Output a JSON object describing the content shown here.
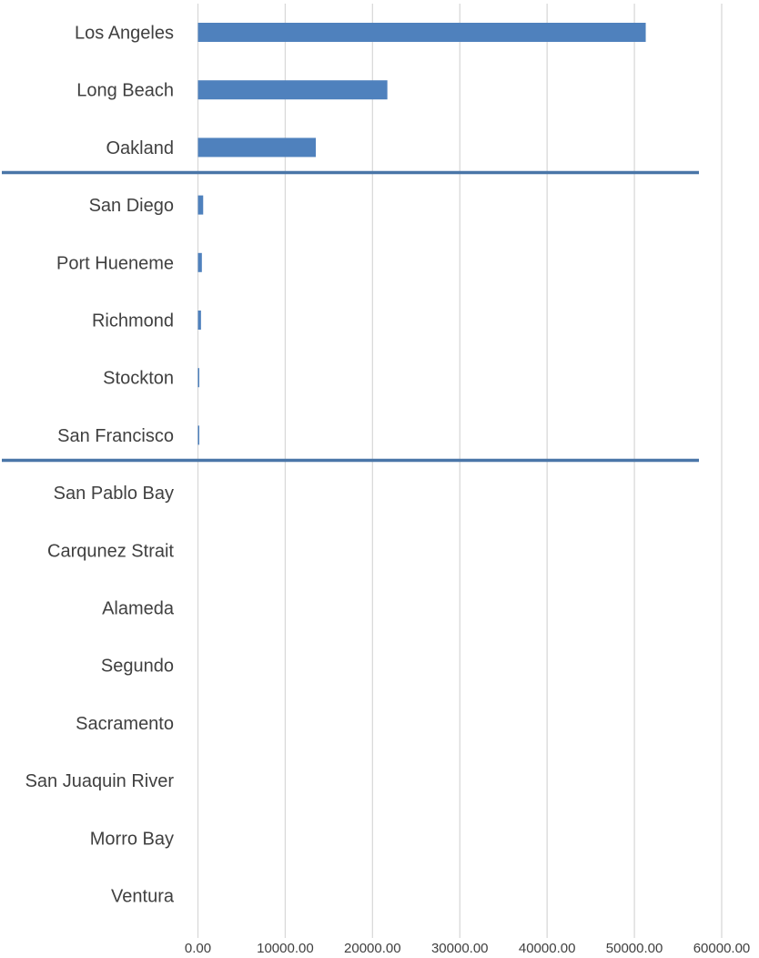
{
  "chart_data": {
    "type": "bar",
    "orientation": "horizontal",
    "title": "",
    "xlabel": "",
    "ylabel": "",
    "categories": [
      "Los Angeles",
      "Long Beach",
      "Oakland",
      "San Diego",
      "Port Hueneme",
      "Richmond",
      "Stockton",
      "San Francisco",
      "San Pablo Bay",
      "Carqunez Strait",
      "Alameda",
      "Segundo",
      "Sacramento",
      "San Juaquin River",
      "Morro Bay",
      "Ventura"
    ],
    "values": [
      51300,
      21700,
      13500,
      600,
      450,
      350,
      150,
      150,
      0,
      0,
      0,
      0,
      0,
      0,
      0,
      0
    ],
    "xlim": [
      0,
      60000
    ],
    "xticks": [
      "0.00",
      "10000.00",
      "20000.00",
      "30000.00",
      "40000.00",
      "50000.00",
      "60000.00"
    ],
    "grid": true,
    "legend": "none",
    "separator_lines_after": [
      "Oakland",
      "San Francisco"
    ],
    "colors": {
      "bar": "#4f81bd",
      "separator": "#4a76a8",
      "grid": "#d9d9d9",
      "text": "#404040"
    }
  }
}
